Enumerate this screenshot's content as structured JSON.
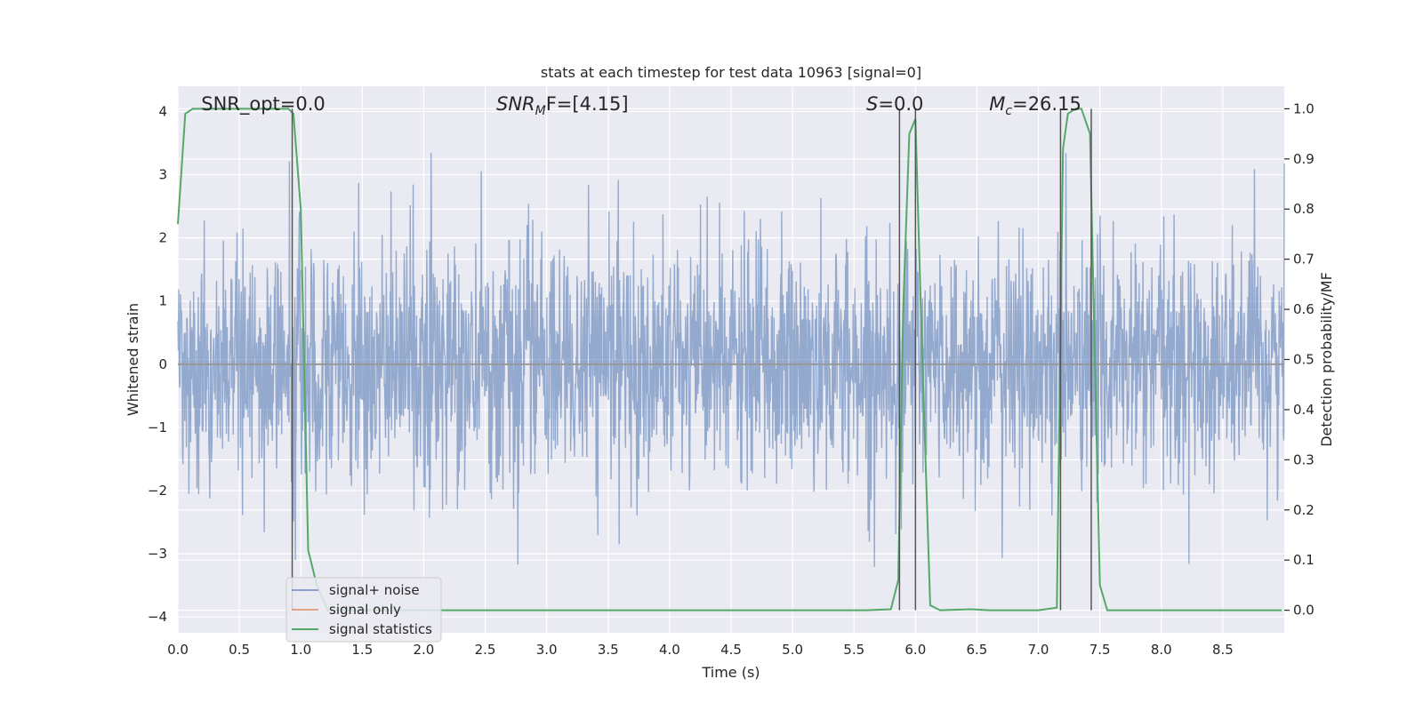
{
  "chart_data": {
    "type": "line",
    "title": "stats at each timestep for test data 10963 [signal=0]",
    "xlabel": "Time (s)",
    "ylabel": "Whitened strain",
    "ylabel_right": "Detection probability/MF",
    "xlim": [
      0.0,
      9.0
    ],
    "ylim": [
      -4.25,
      4.4
    ],
    "ylim_right": [
      -0.045,
      1.045
    ],
    "x_ticks": [
      0.0,
      0.5,
      1.0,
      1.5,
      2.0,
      2.5,
      3.0,
      3.5,
      4.0,
      4.5,
      5.0,
      5.5,
      6.0,
      6.5,
      7.0,
      7.5,
      8.0,
      8.5
    ],
    "x_tick_labels": [
      "0.0",
      "0.5",
      "1.0",
      "1.5",
      "2.0",
      "2.5",
      "3.0",
      "3.5",
      "4.0",
      "4.5",
      "5.0",
      "5.5",
      "6.0",
      "6.5",
      "7.0",
      "7.5",
      "8.0",
      "8.5"
    ],
    "y_ticks": [
      4,
      3,
      2,
      1,
      0,
      -1,
      -2,
      -3,
      -4
    ],
    "y_tick_labels": [
      "4",
      "3",
      "2",
      "1",
      "0",
      "−1",
      "−2",
      "−3",
      "−4"
    ],
    "y_right_ticks": [
      1.0,
      0.9,
      0.8,
      0.7,
      0.6,
      0.5,
      0.4,
      0.3,
      0.2,
      0.1,
      0.0
    ],
    "y_right_tick_labels": [
      "1.0",
      "0.9",
      "0.8",
      "0.7",
      "0.6",
      "0.5",
      "0.4",
      "0.3",
      "0.2",
      "0.1",
      "0.0"
    ],
    "grid": true,
    "legend_position": "lower-left",
    "series": [
      {
        "name": "signal+ noise",
        "axis": "left",
        "color": "#4c72b0",
        "description_values": "dense whitened-noise trace, typical range about -2 to 2, peaks up to about 3.4 and down to about -3.8"
      },
      {
        "name": "signal only",
        "axis": "left",
        "color": "#dd8452",
        "x": [
          0.0,
          9.0
        ],
        "y": [
          0.0,
          0.0
        ]
      },
      {
        "name": "signal statistics",
        "axis": "right",
        "color": "#55a868",
        "x": [
          0.0,
          0.06,
          0.12,
          0.2,
          0.3,
          0.5,
          0.7,
          0.9,
          0.94,
          1.0,
          1.06,
          1.13,
          1.22,
          1.5,
          2.0,
          3.0,
          4.0,
          5.0,
          5.6,
          5.8,
          5.86,
          5.9,
          5.95,
          6.0,
          6.05,
          6.12,
          6.2,
          6.45,
          6.6,
          7.0,
          7.15,
          7.2,
          7.24,
          7.3,
          7.35,
          7.42,
          7.45,
          7.5,
          7.56,
          7.7,
          8.0,
          8.5,
          8.98
        ],
        "y": [
          0.77,
          0.99,
          1.0,
          1.0,
          1.0,
          1.0,
          1.0,
          1.0,
          0.99,
          0.8,
          0.12,
          0.05,
          0.0,
          0.0,
          0.0,
          0.0,
          0.0,
          0.0,
          0.0,
          0.002,
          0.06,
          0.6,
          0.95,
          0.98,
          0.55,
          0.01,
          0.0,
          0.002,
          0.0,
          0.0,
          0.005,
          0.92,
          0.99,
          1.0,
          1.0,
          0.95,
          0.6,
          0.05,
          0.0,
          0.0,
          0.0,
          0.0,
          0.0
        ]
      }
    ],
    "vlines": [
      0.93,
      5.87,
      6.0,
      7.18,
      7.43
    ],
    "annotations": [
      {
        "x": 0.19,
        "prefix": "SNR_opt=0.0",
        "sub": "",
        "suffix": "",
        "italic": false
      },
      {
        "x": 2.59,
        "prefix": "SNR",
        "sub": "M",
        "suffix": "F=[4.15]",
        "italic": true
      },
      {
        "x": 5.6,
        "prefix": "S",
        "sub": "",
        "suffix": "=0.0",
        "italic": true
      },
      {
        "x": 6.6,
        "prefix": "M",
        "sub": "c",
        "suffix": "=26.15",
        "italic": true
      }
    ]
  }
}
